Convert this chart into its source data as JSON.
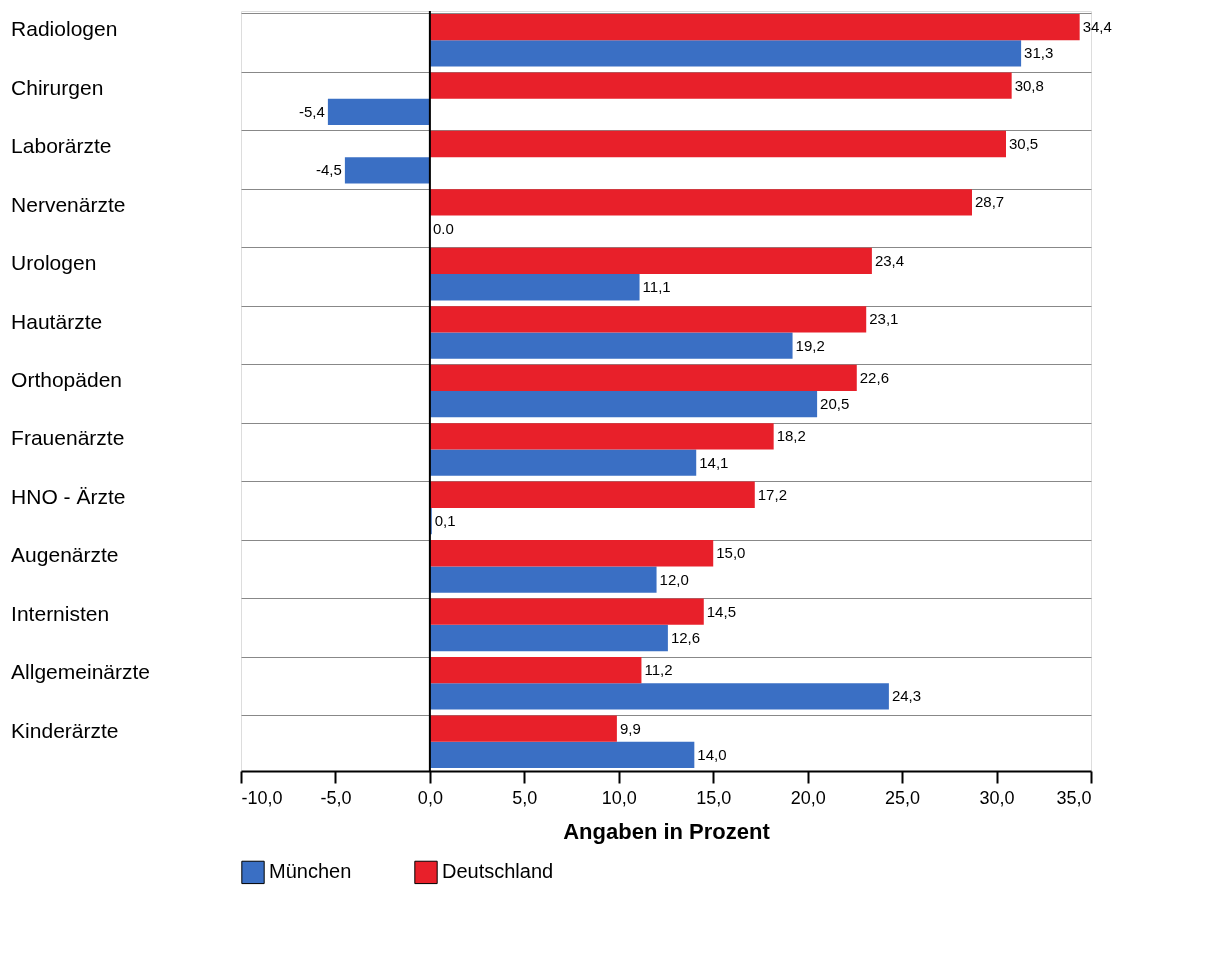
{
  "chart_data": {
    "type": "bar",
    "orientation": "horizontal",
    "categories": [
      "Radiologen",
      "Chirurgen",
      "Laborärzte",
      "Nervenärzte",
      "Urologen",
      "Hautärzte",
      "Orthopäden",
      "Frauenärzte",
      "HNO - Ärzte",
      "Augenärzte",
      "Internisten",
      "Allgemeinärzte",
      "Kinderärzte"
    ],
    "series": [
      {
        "name": "München",
        "color": "#3a6fc4",
        "values": [
          31.3,
          -5.4,
          -4.5,
          0.0,
          11.1,
          19.2,
          20.5,
          14.1,
          0.1,
          12.0,
          12.6,
          24.3,
          14.0
        ],
        "value_labels": [
          "31,3",
          "-5,4",
          "-4,5",
          "0.0",
          "11,1",
          "19,2",
          "20,5",
          "14,1",
          "0,1",
          "12,0",
          "12,6",
          "24,3",
          "14,0"
        ]
      },
      {
        "name": "Deutschland",
        "color": "#e8202a",
        "values": [
          34.4,
          30.8,
          30.5,
          28.7,
          23.4,
          23.1,
          22.6,
          18.2,
          17.2,
          15.0,
          14.5,
          11.2,
          9.9
        ],
        "value_labels": [
          "34,4",
          "30,8",
          "30,5",
          "28,7",
          "23,4",
          "23,1",
          "22,6",
          "18,2",
          "17,2",
          "15,0",
          "14,5",
          "11,2",
          "9,9"
        ]
      }
    ],
    "xlabel": "Angaben in Prozent",
    "xlim": [
      -10,
      35
    ],
    "xticks": [
      {
        "value": -10,
        "label": "-10,0"
      },
      {
        "value": -5,
        "label": "-5,0"
      },
      {
        "value": 0,
        "label": "0,0"
      },
      {
        "value": 5,
        "label": "5,0"
      },
      {
        "value": 10,
        "label": "10,0"
      },
      {
        "value": 15,
        "label": "15,0"
      },
      {
        "value": 20,
        "label": "20,0"
      },
      {
        "value": 25,
        "label": "25,0"
      },
      {
        "value": 30,
        "label": "30,0"
      },
      {
        "value": 35,
        "label": "35,0"
      }
    ],
    "ref_lines": [
      {
        "axis": "x",
        "value": 0
      }
    ],
    "grid": "y",
    "legend": "bottom"
  }
}
